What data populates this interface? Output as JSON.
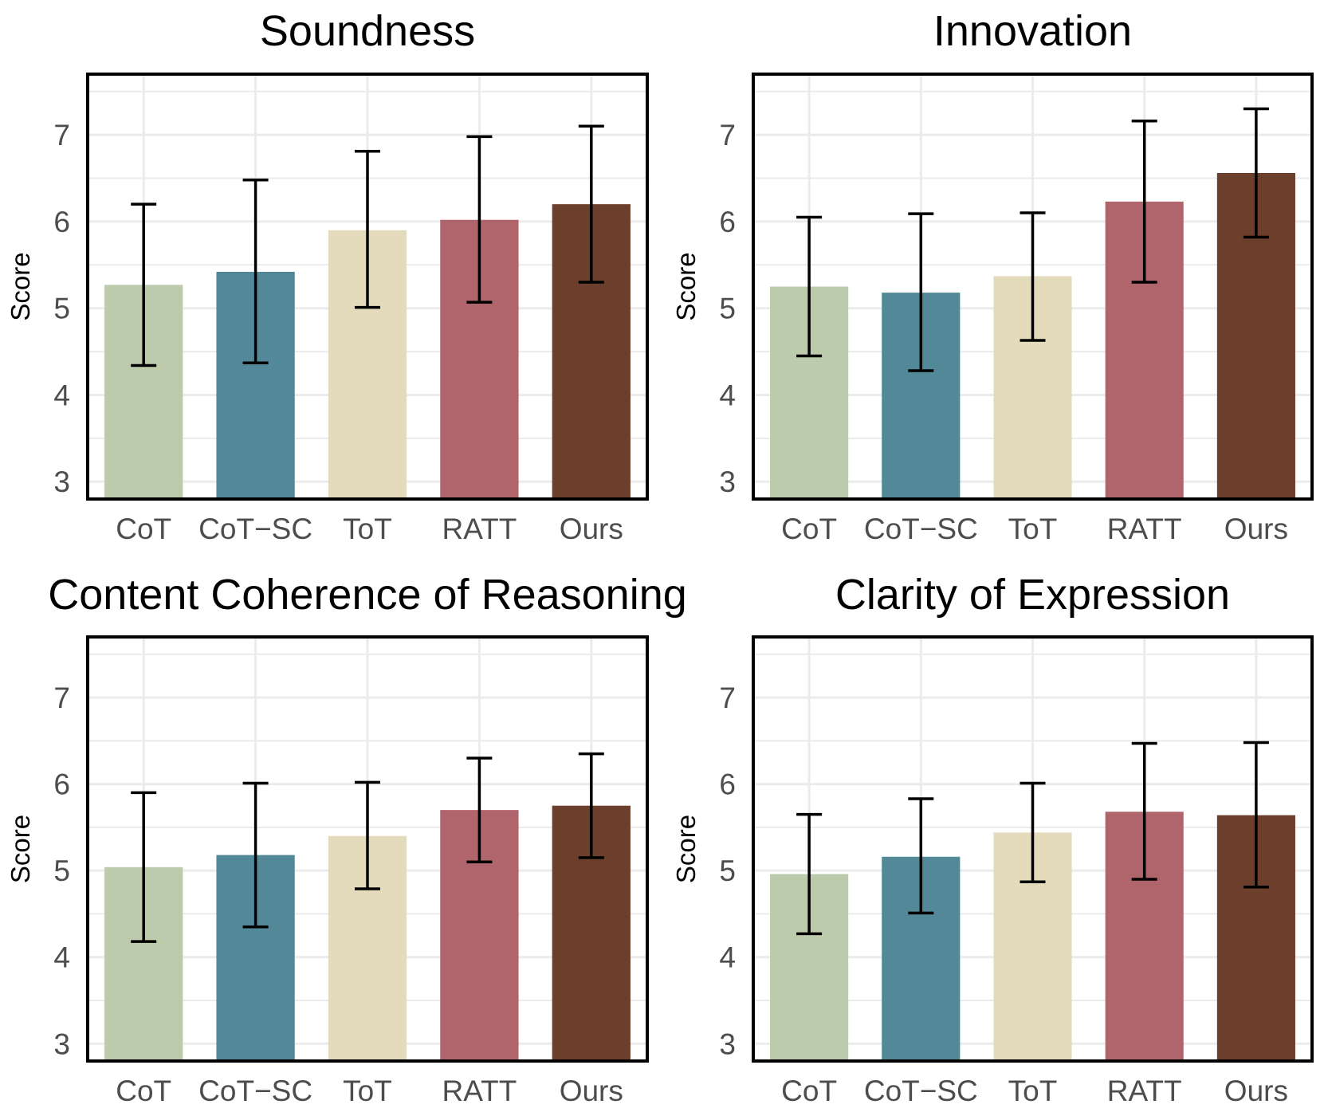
{
  "chart_data": [
    {
      "type": "bar",
      "title": "Soundness",
      "ylabel": "Score",
      "xlabel": "",
      "categories": [
        "CoT",
        "CoT−SC",
        "ToT",
        "RATT",
        "Ours"
      ],
      "values": [
        5.27,
        5.42,
        5.9,
        6.02,
        6.2
      ],
      "error_low": [
        4.34,
        4.37,
        5.01,
        5.07,
        5.3
      ],
      "error_high": [
        6.2,
        6.48,
        6.81,
        6.98,
        7.1
      ],
      "ylim": [
        2.8,
        7.7
      ],
      "yticks": [
        "3",
        "4",
        "5",
        "6",
        "7"
      ],
      "grid": true,
      "legend": "none"
    },
    {
      "type": "bar",
      "title": "Innovation",
      "ylabel": "Score",
      "xlabel": "",
      "categories": [
        "CoT",
        "CoT−SC",
        "ToT",
        "RATT",
        "Ours"
      ],
      "values": [
        5.25,
        5.18,
        5.37,
        6.23,
        6.56
      ],
      "error_low": [
        4.45,
        4.28,
        4.63,
        5.3,
        5.82
      ],
      "error_high": [
        6.05,
        6.09,
        6.1,
        7.16,
        7.3
      ],
      "ylim": [
        2.8,
        7.7
      ],
      "yticks": [
        "3",
        "4",
        "5",
        "6",
        "7"
      ],
      "grid": true,
      "legend": "none"
    },
    {
      "type": "bar",
      "title": "Content Coherence of Reasoning",
      "ylabel": "Score",
      "xlabel": "",
      "categories": [
        "CoT",
        "CoT−SC",
        "ToT",
        "RATT",
        "Ours"
      ],
      "values": [
        5.04,
        5.18,
        5.4,
        5.7,
        5.75
      ],
      "error_low": [
        4.18,
        4.35,
        4.79,
        5.1,
        5.15
      ],
      "error_high": [
        5.9,
        6.01,
        6.02,
        6.3,
        6.35
      ],
      "ylim": [
        2.8,
        7.7
      ],
      "yticks": [
        "3",
        "4",
        "5",
        "6",
        "7"
      ],
      "grid": true,
      "legend": "none"
    },
    {
      "type": "bar",
      "title": "Clarity of Expression",
      "ylabel": "Score",
      "xlabel": "",
      "categories": [
        "CoT",
        "CoT−SC",
        "ToT",
        "RATT",
        "Ours"
      ],
      "values": [
        4.96,
        5.16,
        5.44,
        5.68,
        5.64
      ],
      "error_low": [
        4.27,
        4.51,
        4.87,
        4.9,
        4.81
      ],
      "error_high": [
        5.65,
        5.83,
        6.01,
        6.47,
        6.48
      ],
      "ylim": [
        2.8,
        7.7
      ],
      "yticks": [
        "3",
        "4",
        "5",
        "6",
        "7"
      ],
      "grid": true,
      "legend": "none"
    }
  ],
  "colors": {
    "CoT": "#bdcbad",
    "CoT−SC": "#528897",
    "ToT": "#e4dbbd",
    "RATT": "#b0656d",
    "Ours": "#6b3f2c",
    "grid": "#ebebeb",
    "frame": "#000000",
    "error_bar": "#000000",
    "tick_text": "#4d4d4d"
  }
}
